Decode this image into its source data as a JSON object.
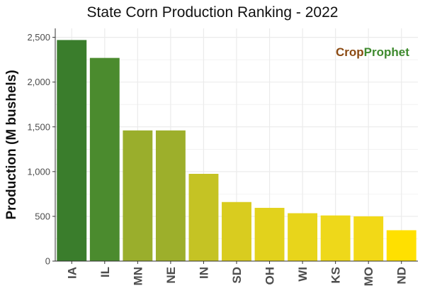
{
  "chart_data": {
    "type": "bar",
    "title": "State Corn Production Ranking - 2022",
    "xlabel": "",
    "ylabel": "Production (M bushels)",
    "categories": [
      "IA",
      "IL",
      "MN",
      "NE",
      "IN",
      "SD",
      "OH",
      "WI",
      "KS",
      "MO",
      "ND"
    ],
    "values": [
      2470,
      2270,
      1460,
      1460,
      975,
      660,
      595,
      535,
      510,
      500,
      345
    ],
    "ylim": [
      0,
      2600
    ],
    "yticks": [
      0,
      500,
      1000,
      1500,
      2000,
      2500
    ],
    "ytick_labels": [
      "0",
      "500",
      "1,000",
      "1,500",
      "2,000",
      "2,500"
    ],
    "bar_colors": [
      "#3a7d2c",
      "#4b8b2e",
      "#9aae2c",
      "#9daf2b",
      "#c5c324",
      "#d9cc1f",
      "#e2d21c",
      "#e8d51b",
      "#eed81a",
      "#f2d917",
      "#ffe000"
    ],
    "grid": true,
    "legend": "none"
  },
  "logo": {
    "part1": "Crop",
    "part2": "Prophet",
    "color1": "#8b4a12",
    "color2": "#3e8a2e"
  },
  "colors": {
    "panel_background": "#ffffff",
    "gridline": "#ebebeb",
    "axis_line": "#333333"
  }
}
